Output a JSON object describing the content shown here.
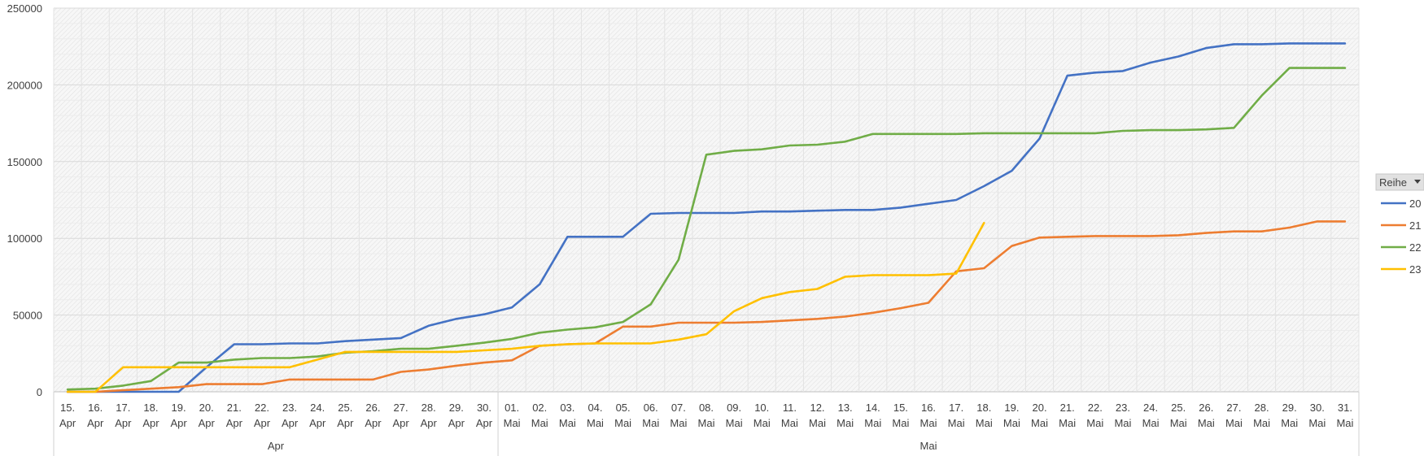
{
  "chart_data": {
    "type": "line",
    "title": "",
    "xlabel": "",
    "ylabel": "",
    "ylim": [
      0,
      250000
    ],
    "y_ticks": [
      "0",
      "50000",
      "100000",
      "150000",
      "200000",
      "250000"
    ],
    "grid": true,
    "legend_position": "right",
    "categories": [
      "15. Apr",
      "16. Apr",
      "17. Apr",
      "18. Apr",
      "19. Apr",
      "20. Apr",
      "21. Apr",
      "22. Apr",
      "23. Apr",
      "24. Apr",
      "25. Apr",
      "26. Apr",
      "27. Apr",
      "28. Apr",
      "29. Apr",
      "30. Apr",
      "01. Mai",
      "02. Mai",
      "03. Mai",
      "04. Mai",
      "05. Mai",
      "06. Mai",
      "07. Mai",
      "08. Mai",
      "09. Mai",
      "10. Mai",
      "11. Mai",
      "12. Mai",
      "13. Mai",
      "14. Mai",
      "15. Mai",
      "16. Mai",
      "17. Mai",
      "18. Mai",
      "19. Mai",
      "20. Mai",
      "21. Mai",
      "22. Mai",
      "23. Mai",
      "24. Mai",
      "25. Mai",
      "26. Mai",
      "27. Mai",
      "28. Mai",
      "29. Mai",
      "30. Mai",
      "31. Mai"
    ],
    "month_groups": [
      {
        "label": "Apr",
        "count": 16
      },
      {
        "label": "Mai",
        "count": 31
      }
    ],
    "legend_title": "Reihe",
    "series": [
      {
        "name": "20",
        "color": "#4472C4",
        "values": [
          0,
          0,
          0,
          0,
          0,
          16000,
          31000,
          31000,
          31500,
          31500,
          33000,
          34000,
          35000,
          43000,
          47500,
          50500,
          55000,
          70000,
          101000,
          101000,
          101000,
          116000,
          116500,
          116500,
          116500,
          117500,
          117500,
          118000,
          118500,
          118500,
          120000,
          122500,
          125000,
          134000,
          144000,
          165000,
          206000,
          208000,
          209000,
          214500,
          218500,
          224000,
          226500,
          226500,
          227000,
          227000,
          227000
        ]
      },
      {
        "name": "21",
        "color": "#ED7D31",
        "values": [
          0,
          0,
          1000,
          2000,
          3000,
          5000,
          5000,
          5000,
          8000,
          8000,
          8000,
          8000,
          13000,
          14500,
          17000,
          19000,
          20500,
          30000,
          31000,
          31500,
          42500,
          42500,
          45000,
          45000,
          45000,
          45500,
          46500,
          47500,
          49000,
          51500,
          54500,
          58000,
          78500,
          80500,
          95000,
          100500,
          101000,
          101500,
          101500,
          101500,
          102000,
          103500,
          104500,
          104500,
          107000,
          111000,
          111000
        ]
      },
      {
        "name": "22",
        "color": "#70AD47",
        "values": [
          1500,
          2000,
          4000,
          7000,
          19000,
          19000,
          21000,
          22000,
          22000,
          23000,
          25500,
          26500,
          28000,
          28000,
          30000,
          32000,
          34500,
          38500,
          40500,
          42000,
          45500,
          57000,
          86000,
          154500,
          157000,
          158000,
          160500,
          161000,
          163000,
          168000,
          168000,
          168000,
          168000,
          168500,
          168500,
          168500,
          168500,
          168500,
          170000,
          170500,
          170500,
          171000,
          172000,
          193000,
          211000,
          211000,
          211000
        ]
      },
      {
        "name": "23",
        "color": "#FFC000",
        "values": [
          0,
          0,
          16000,
          16000,
          16000,
          16000,
          16000,
          16000,
          16000,
          21000,
          26000,
          26000,
          26000,
          26000,
          26000,
          27000,
          28000,
          30000,
          31000,
          31500,
          31500,
          31500,
          34000,
          37500,
          52500,
          61000,
          65000,
          67000,
          75000,
          76000,
          76000,
          76000,
          77000,
          110000,
          null,
          null,
          null,
          null,
          null,
          null,
          null,
          null,
          null,
          null,
          null,
          null,
          null
        ]
      }
    ]
  }
}
